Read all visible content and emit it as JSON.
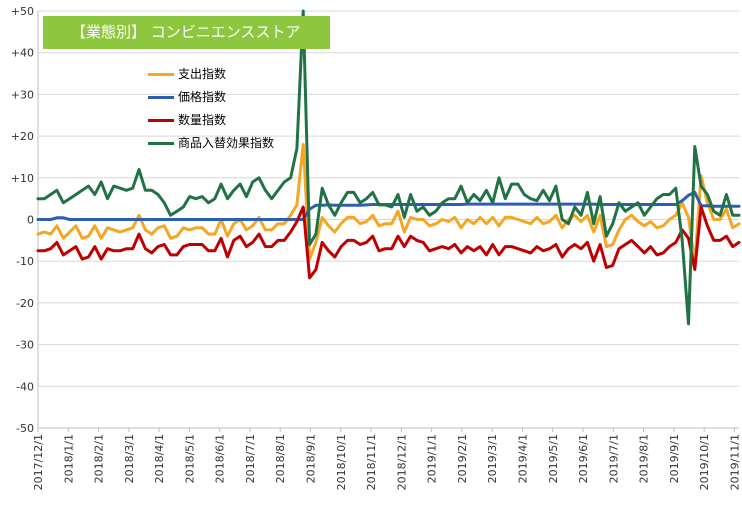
{
  "title": "【業態別】 コンビニエンスストア",
  "chart_data": {
    "type": "line",
    "title": "【業態別】 コンビニエンスストア",
    "ylim": [
      -50,
      50
    ],
    "yticks": [
      "+50",
      "+40",
      "+30",
      "+20",
      "+10",
      "0",
      "-10",
      "-20",
      "-30",
      "-40",
      "-50"
    ],
    "xtick_labels": [
      "2017/12/1",
      "2018/1/1",
      "2018/2/1",
      "2018/3/1",
      "2018/4/1",
      "2018/5/1",
      "2018/6/1",
      "2018/7/1",
      "2018/8/1",
      "2018/9/1",
      "2018/10/1",
      "2018/11/1",
      "2018/12/1",
      "2019/1/1",
      "2019/2/1",
      "2019/3/1",
      "2019/4/1",
      "2019/5/1",
      "2019/6/1",
      "2019/7/1",
      "2019/8/1",
      "2019/9/1",
      "2019/10/1",
      "2019/11/1"
    ],
    "grid": "horizontal",
    "legend_position": "upper-left",
    "series": [
      {
        "name": "支出指数",
        "color": "#f5a623",
        "values": [
          -3.5,
          -3,
          -3.5,
          -1.5,
          -4.5,
          -3,
          -1.5,
          -4.5,
          -4,
          -1.5,
          -4.5,
          -2,
          -2.5,
          -3,
          -2.5,
          -2,
          1,
          -2.5,
          -3.5,
          -2,
          -1.5,
          -4.5,
          -4,
          -2,
          -2.5,
          -2,
          -2,
          -3.5,
          -3.5,
          0,
          -4,
          -1,
          0,
          -2.5,
          -1.5,
          0.5,
          -2.5,
          -2.5,
          -1,
          -1,
          1,
          3.5,
          18,
          -9.5,
          -5.5,
          0.5,
          -1.5,
          -3,
          -1,
          0.5,
          0.5,
          -1,
          -0.5,
          1,
          -1.5,
          -1,
          -1,
          2,
          -3,
          0.5,
          0,
          0,
          -1.5,
          -1,
          0,
          -0.5,
          0.5,
          -2,
          0,
          -1,
          0.5,
          -1,
          0.5,
          -1.5,
          0.5,
          0.5,
          0,
          -0.5,
          -1,
          0.5,
          -1,
          -0.5,
          1,
          -2,
          0,
          1,
          -0.5,
          1,
          -3,
          1,
          -6.5,
          -6,
          -2.5,
          0,
          1,
          -0.5,
          -1.5,
          -0.5,
          -2,
          -1.5,
          0,
          1,
          4,
          0.5,
          -10.5,
          10.5,
          4,
          0,
          0,
          2.5,
          -2,
          -1
        ]
      },
      {
        "name": "価格指数",
        "color": "#2c5fb3",
        "values": [
          0,
          0,
          0,
          0.4,
          0.4,
          0,
          0,
          0,
          0,
          0,
          0,
          0,
          0,
          0,
          0,
          0,
          0,
          0,
          0,
          0,
          0,
          0,
          0,
          0,
          0,
          0,
          0,
          0,
          0,
          0,
          0,
          0,
          0,
          0,
          0,
          0,
          0,
          0,
          0,
          0,
          0,
          0,
          0,
          2.5,
          3.4,
          3.4,
          3.5,
          3.4,
          3.4,
          3.4,
          3.4,
          3.4,
          3.5,
          3.6,
          3.6,
          3.6,
          3.6,
          3.6,
          3.6,
          3.6,
          3.6,
          3.6,
          3.6,
          3.6,
          3.6,
          3.6,
          3.6,
          3.6,
          3.7,
          3.7,
          3.7,
          3.7,
          3.7,
          3.7,
          3.7,
          3.7,
          3.7,
          3.7,
          3.7,
          3.7,
          3.7,
          3.7,
          3.7,
          3.7,
          3.7,
          3.7,
          3.7,
          3.7,
          3.7,
          3.6,
          3.6,
          3.6,
          3.6,
          3.6,
          3.6,
          3.6,
          3.6,
          3.6,
          3.6,
          3.6,
          3.6,
          3.6,
          4.5,
          5.8,
          6.5,
          3.3,
          3.3,
          3.2,
          3.2,
          3.2,
          3.2,
          3.2
        ]
      },
      {
        "name": "数量指数",
        "color": "#c00000",
        "values": [
          -7.5,
          -7.5,
          -7,
          -5.5,
          -8.5,
          -7.5,
          -6.5,
          -9.5,
          -9,
          -6.5,
          -9.5,
          -7,
          -7.5,
          -7.5,
          -7,
          -7,
          -3.5,
          -7,
          -8,
          -6.5,
          -6,
          -8.5,
          -8.5,
          -6.5,
          -6,
          -6,
          -6,
          -7.5,
          -7.5,
          -4.5,
          -9,
          -5,
          -4,
          -6.5,
          -5.5,
          -3.5,
          -6.5,
          -6.5,
          -5,
          -5,
          -3,
          -0.5,
          3,
          -14,
          -12,
          -5.5,
          -7.5,
          -9,
          -6.5,
          -5,
          -5,
          -6,
          -5.5,
          -4,
          -7.5,
          -7,
          -7,
          -4,
          -6.5,
          -4,
          -5,
          -5.5,
          -7.5,
          -7,
          -6.5,
          -7,
          -6,
          -8,
          -6.5,
          -7.5,
          -6.5,
          -8.5,
          -6,
          -8.5,
          -6.5,
          -6.5,
          -7,
          -7.5,
          -8,
          -6.5,
          -7.5,
          -7,
          -6,
          -9,
          -7,
          -6,
          -7,
          -5.5,
          -10,
          -6,
          -11.5,
          -11,
          -7,
          -6,
          -5,
          -6.5,
          -8,
          -6.5,
          -8.5,
          -8,
          -6.5,
          -5.5,
          -2.5,
          -4.5,
          -12,
          3,
          -1.5,
          -5,
          -5,
          -4,
          -6.5,
          -5.5
        ]
      },
      {
        "name": "商品入替効果指数",
        "color": "#217346",
        "values": [
          5,
          5,
          6,
          7,
          4,
          5,
          6,
          7,
          8,
          6,
          9,
          5,
          8,
          7.5,
          7,
          7.5,
          12,
          7,
          7,
          6,
          4,
          1,
          2,
          3,
          5.5,
          5,
          5.5,
          4,
          5,
          8.5,
          5,
          7,
          8.5,
          5.5,
          9,
          10,
          7,
          5,
          7,
          9,
          10,
          17,
          50,
          -6,
          -3.5,
          7.5,
          3.5,
          1,
          4,
          6.5,
          6.5,
          4,
          5,
          6.5,
          3.5,
          3.5,
          3,
          6,
          0.5,
          6,
          2,
          3,
          1,
          2,
          4,
          5,
          5,
          8,
          4,
          6,
          4.5,
          7,
          4,
          10,
          5,
          8.5,
          8.5,
          6,
          5,
          4.5,
          7,
          4.5,
          8,
          0,
          -1,
          3,
          1,
          6.5,
          -1,
          5.5,
          -4,
          -1,
          4,
          2,
          3,
          4,
          1,
          3,
          5,
          6,
          6,
          7.5,
          -5,
          -25,
          17.5,
          8,
          6,
          2,
          1,
          6,
          1,
          1
        ]
      }
    ]
  }
}
